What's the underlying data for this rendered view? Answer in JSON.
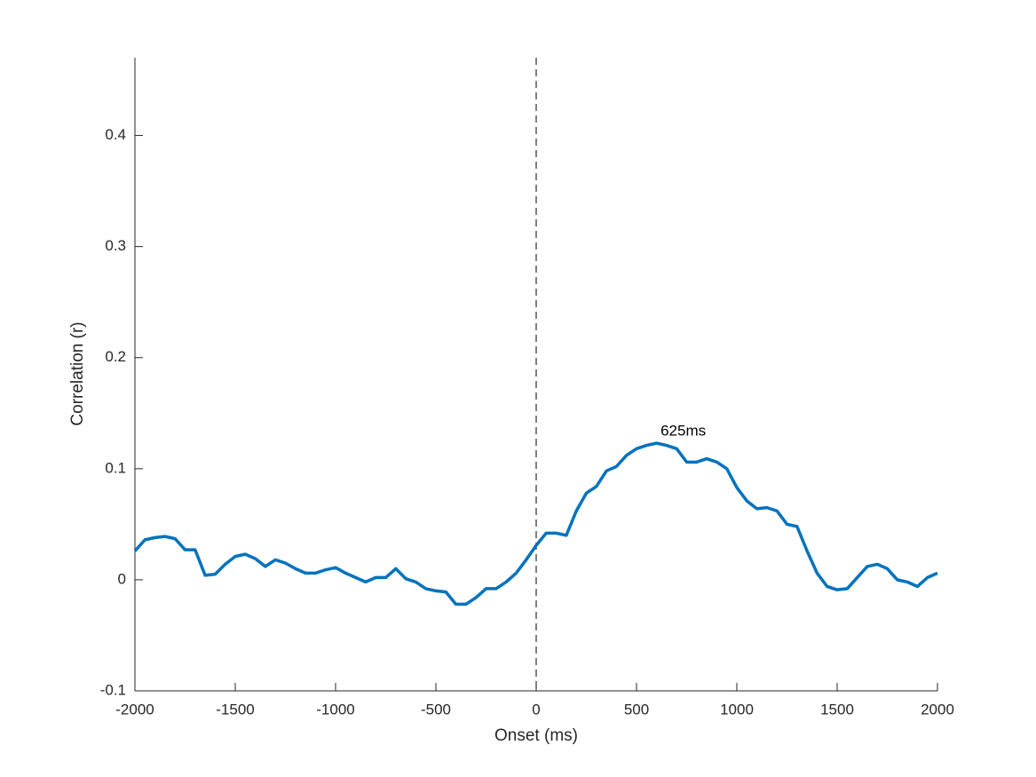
{
  "chart_data": {
    "type": "line",
    "xlabel": "Onset (ms)",
    "ylabel": "Correlation (r)",
    "annotation": "625ms",
    "vline_x": 0,
    "xlim": [
      -2000,
      2000
    ],
    "xticks": [
      -2000,
      -1500,
      -1000,
      -500,
      0,
      500,
      1000,
      1500,
      2000
    ],
    "ylim": [
      -0.1,
      0.47
    ],
    "yticks": [
      -0.1,
      0,
      0.1,
      0.2,
      0.3,
      0.4
    ],
    "x": [
      -2000,
      -1950,
      -1900,
      -1850,
      -1800,
      -1750,
      -1700,
      -1650,
      -1600,
      -1550,
      -1500,
      -1450,
      -1400,
      -1350,
      -1300,
      -1250,
      -1200,
      -1150,
      -1100,
      -1050,
      -1000,
      -950,
      -900,
      -850,
      -800,
      -750,
      -700,
      -650,
      -600,
      -550,
      -500,
      -450,
      -400,
      -350,
      -300,
      -250,
      -200,
      -150,
      -100,
      -50,
      0,
      50,
      100,
      150,
      200,
      250,
      300,
      350,
      400,
      450,
      500,
      550,
      600,
      650,
      700,
      750,
      800,
      850,
      900,
      950,
      1000,
      1050,
      1100,
      1150,
      1200,
      1250,
      1300,
      1350,
      1400,
      1450,
      1500,
      1550,
      1600,
      1650,
      1700,
      1750,
      1800,
      1850,
      1900,
      1950,
      2000
    ],
    "series": [
      {
        "color": "#0072bd",
        "values": [
          0.026,
          0.036,
          0.038,
          0.039,
          0.037,
          0.027,
          0.027,
          0.004,
          0.005,
          0.014,
          0.021,
          0.023,
          0.019,
          0.012,
          0.018,
          0.015,
          0.01,
          0.006,
          0.006,
          0.009,
          0.011,
          0.006,
          0.002,
          -0.002,
          0.002,
          0.002,
          0.01,
          0.001,
          -0.002,
          -0.008,
          -0.01,
          -0.011,
          -0.022,
          -0.022,
          -0.016,
          -0.008,
          -0.008,
          -0.002,
          0.006,
          0.018,
          0.031,
          0.042,
          0.042,
          0.04,
          0.062,
          0.078,
          0.084,
          0.098,
          0.102,
          0.112,
          0.118,
          0.121,
          0.123,
          0.121,
          0.118,
          0.106,
          0.106,
          0.109,
          0.106,
          0.1,
          0.083,
          0.071,
          0.064,
          0.065,
          0.062,
          0.05,
          0.048,
          0.026,
          0.006,
          -0.006,
          -0.009,
          -0.008,
          0.002,
          0.012,
          0.014,
          0.01,
          0.0,
          -0.002,
          -0.006,
          0.002,
          0.006
        ]
      }
    ]
  }
}
